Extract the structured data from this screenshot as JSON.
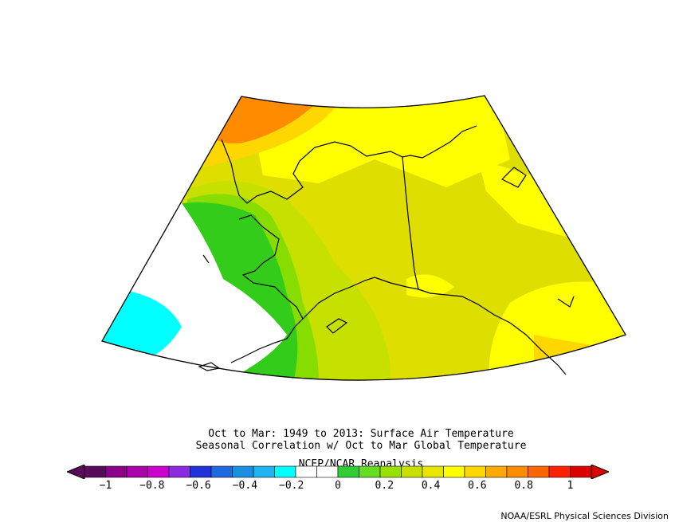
{
  "captions": {
    "line1": "Oct to Mar: 1949 to 2013: Surface Air Temperature",
    "line2": "Seasonal Correlation w/ Oct to Mar Global Temperature",
    "line3": "NCEP/NCAR Reanalysis"
  },
  "footer": "NOAA/ESRL Physical Sciences Division",
  "legend": {
    "ticks": [
      "−1",
      "−0.8",
      "−0.6",
      "−0.4",
      "−0.2",
      "0",
      "0.2",
      "0.4",
      "0.6",
      "0.8",
      "1"
    ],
    "colors": [
      "#5a0a5a",
      "#8a008a",
      "#aa00aa",
      "#cc00cc",
      "#8a2be2",
      "#2233dd",
      "#1e68e0",
      "#1a8ee0",
      "#1eb4f0",
      "#00ffff",
      "#ffffff",
      "#ffffff",
      "#32cd32",
      "#66dd22",
      "#99e000",
      "#c8e000",
      "#e6e600",
      "#ffff00",
      "#ffd700",
      "#ffaa00",
      "#ff8c00",
      "#ff6600",
      "#ff2200",
      "#dd0000"
    ]
  },
  "map": {
    "field_colors": {
      "cyan": "#00ffff",
      "white": "#ffffff",
      "green": "#33cc1a",
      "light_green": "#88dd00",
      "yellow_green": "#c6e000",
      "olive_yellow": "#dede00",
      "yellow": "#ffff00",
      "gold": "#ffd700",
      "orange": "#ff8c00"
    }
  }
}
